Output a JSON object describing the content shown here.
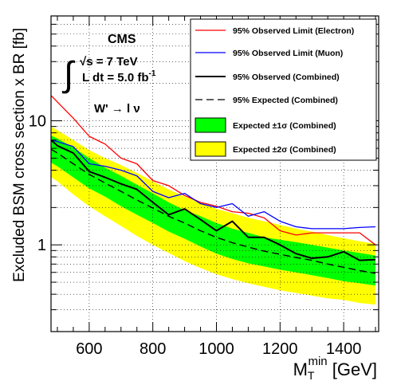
{
  "chart_data": {
    "type": "line",
    "xlabel_main": "M",
    "xlabel_sub": "T",
    "xlabel_sup": "min",
    "xlabel_unit": " [GeV]",
    "ylabel": "Excluded BSM cross section x BR [fb]",
    "xlim": [
      480,
      1510
    ],
    "ylim": [
      0.2,
      70
    ],
    "yscale": "log",
    "x_ticks": [
      600,
      800,
      1000,
      1200,
      1400
    ],
    "x_tick_labels": [
      "600",
      "800",
      "1000",
      "1200",
      "1400"
    ],
    "y_ticks": [
      1,
      10
    ],
    "y_tick_labels": [
      "1",
      "10"
    ],
    "annotations": {
      "experiment": "CMS",
      "energy": "√s = 7 TeV",
      "lumi_main": "L dt = 5.0 fb",
      "lumi_sup": "-1",
      "integral": "∫",
      "process": "W' → l ν"
    },
    "legend": {
      "placement": "top-right",
      "entries": [
        {
          "label": "95% Observed Limit (Electron)",
          "style": "line",
          "color": "#ff0000"
        },
        {
          "label": "95% Observed Limit (Muon)",
          "style": "line",
          "color": "#0000ff"
        },
        {
          "label": "95% Observed (Combined)",
          "style": "line",
          "color": "#000000"
        },
        {
          "label": "95% Expected (Combined)",
          "style": "dashed",
          "color": "#000000"
        },
        {
          "label": "Expected ±1σ (Combined)",
          "style": "fill",
          "color": "#00ff00"
        },
        {
          "label": "Expected ±2σ (Combined)",
          "style": "fill",
          "color": "#ffff00"
        }
      ]
    },
    "x": [
      480,
      500,
      550,
      600,
      650,
      700,
      750,
      800,
      850,
      900,
      950,
      1000,
      1050,
      1100,
      1150,
      1200,
      1250,
      1300,
      1350,
      1400,
      1450,
      1500
    ],
    "band2_upper": [
      9.0,
      8.4,
      7.0,
      5.8,
      5.0,
      4.4,
      3.8,
      3.25,
      2.8,
      2.45,
      2.2,
      1.95,
      1.8,
      1.65,
      1.55,
      1.45,
      1.35,
      1.28,
      1.2,
      1.13,
      1.07,
      1.02
    ],
    "band1_upper": [
      7.6,
      7.2,
      6.1,
      5.0,
      4.2,
      3.6,
      3.05,
      2.6,
      2.2,
      1.9,
      1.7,
      1.5,
      1.35,
      1.25,
      1.15,
      1.1,
      1.05,
      1.0,
      0.95,
      0.9,
      0.86,
      0.82
    ],
    "band1_lower": [
      4.6,
      4.3,
      3.5,
      2.85,
      2.45,
      2.05,
      1.75,
      1.5,
      1.28,
      1.12,
      0.97,
      0.85,
      0.77,
      0.71,
      0.67,
      0.63,
      0.6,
      0.57,
      0.54,
      0.51,
      0.49,
      0.47
    ],
    "band2_lower": [
      3.5,
      3.25,
      2.55,
      2.05,
      1.7,
      1.42,
      1.18,
      1.0,
      0.86,
      0.74,
      0.65,
      0.58,
      0.53,
      0.49,
      0.46,
      0.43,
      0.41,
      0.39,
      0.37,
      0.36,
      0.34,
      0.33
    ],
    "series": [
      {
        "name": "95% Observed Limit (Electron)",
        "color": "#ff0000",
        "dash": "none",
        "width": 1.3,
        "x": [
          480,
          550,
          600,
          650,
          700,
          750,
          800,
          850,
          900,
          950,
          1000,
          1050,
          1100,
          1150,
          1200,
          1250,
          1300,
          1350,
          1400,
          1450,
          1500
        ],
        "y": [
          16.0,
          10.5,
          7.5,
          6.5,
          5.0,
          4.5,
          3.3,
          3.0,
          2.5,
          2.2,
          2.05,
          1.85,
          1.8,
          1.65,
          1.3,
          1.2,
          1.25,
          1.25,
          1.25,
          1.25,
          1.0
        ]
      },
      {
        "name": "95% Observed Limit (Muon)",
        "color": "#0000ff",
        "dash": "none",
        "width": 1.3,
        "x": [
          480,
          500,
          550,
          600,
          650,
          700,
          750,
          800,
          850,
          900,
          950,
          1000,
          1050,
          1100,
          1150,
          1200,
          1250,
          1300,
          1350,
          1400,
          1450,
          1500
        ],
        "y": [
          7.0,
          6.8,
          6.2,
          4.5,
          4.3,
          4.0,
          3.6,
          2.7,
          2.4,
          2.6,
          2.15,
          2.0,
          2.15,
          1.7,
          1.85,
          1.55,
          1.4,
          1.35,
          1.35,
          1.35,
          1.38,
          1.4
        ]
      },
      {
        "name": "95% Observed (Combined)",
        "color": "#000000",
        "dash": "none",
        "width": 2,
        "x": [
          480,
          500,
          550,
          600,
          650,
          700,
          750,
          800,
          850,
          900,
          950,
          1000,
          1050,
          1100,
          1150,
          1200,
          1250,
          1300,
          1350,
          1400,
          1450,
          1500
        ],
        "y": [
          7.0,
          6.3,
          5.5,
          3.9,
          3.5,
          3.1,
          2.8,
          2.2,
          1.75,
          1.95,
          1.6,
          1.3,
          1.55,
          1.15,
          1.15,
          1.0,
          0.85,
          0.78,
          0.8,
          0.88,
          0.75,
          0.76
        ]
      },
      {
        "name": "95% Expected (Combined)",
        "color": "#000000",
        "dash": "9 5",
        "width": 1.4,
        "x": [
          480,
          500,
          550,
          600,
          650,
          700,
          750,
          800,
          850,
          900,
          950,
          1000,
          1050,
          1100,
          1150,
          1200,
          1250,
          1300,
          1350,
          1400,
          1450,
          1500
        ],
        "y": [
          5.9,
          5.5,
          4.5,
          3.7,
          3.15,
          2.7,
          2.3,
          1.98,
          1.7,
          1.5,
          1.3,
          1.15,
          1.04,
          0.96,
          0.89,
          0.84,
          0.79,
          0.75,
          0.7,
          0.66,
          0.62,
          0.59
        ]
      }
    ]
  }
}
